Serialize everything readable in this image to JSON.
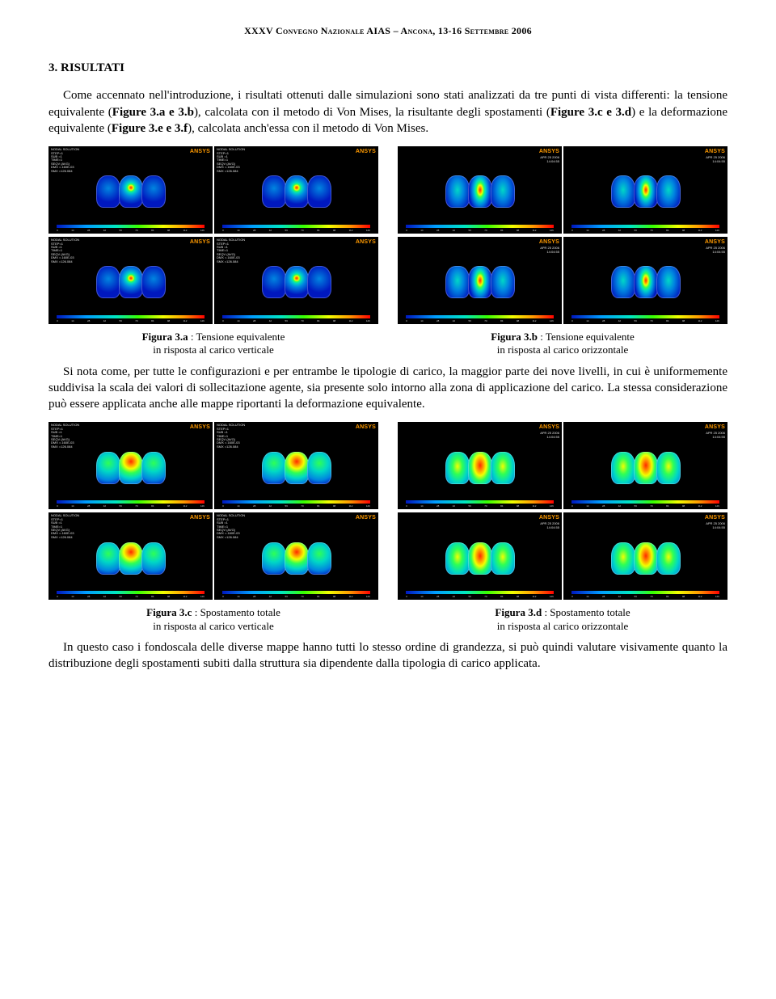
{
  "header": "XXXV Convegno Nazionale AIAS – Ancona, 13-16 Settembre 2006",
  "section": "3. RISULTATI",
  "para1_pre": "Come accennato nell'introduzione, i risultati ottenuti dalle simulazioni sono stati analizzati da tre punti di vista differenti: la tensione equivalente (",
  "fig_ref_1": "Figure 3.a e 3.b",
  "para1_mid1": "), calcolata con il metodo di Von Mises, la risultante degli spostamenti (",
  "fig_ref_2": "Figure 3.c e 3.d",
  "para1_mid2": ") e la deformazione equivalente (",
  "fig_ref_3": "Figure 3.e e 3.f",
  "para1_end": "), calcolata anch'essa con il metodo di Von Mises.",
  "para2": "Si nota come, per tutte le configurazioni e per entrambe le tipologie di carico, la maggior parte dei nove livelli, in cui è uniformemente suddivisa la scala dei valori di sollecitazione agente, sia presente solo intorno alla zona di applicazione del carico. La stessa considerazione può essere applicata anche alle mappe riportanti la deformazione equivalente.",
  "para3": "In questo caso i fondoscala delle diverse mappe hanno tutti lo stesso ordine di grandezza, si può quindi valutare visivamente quanto la distribuzione degli spostamenti subiti dalla struttura sia dipendente dalla tipologia di carico applicata.",
  "figs": {
    "a": {
      "title": "Figura 3.a",
      "desc": " : Tensione equivalente",
      "sub": "in risposta al carico verticale"
    },
    "b": {
      "title": "Figura 3.b",
      "desc": " : Tensione equivalente",
      "sub": "in risposta al carico orizzontale"
    },
    "c": {
      "title": "Figura 3.c",
      "desc": " : Spostamento totale",
      "sub": "in risposta al carico verticale"
    },
    "d": {
      "title": "Figura 3.d",
      "desc": " : Spostamento totale",
      "sub": "in risposta al carico orizzontale"
    }
  },
  "ansys": {
    "logo": "ANSYS",
    "meta_lines": "NODAL SOLUTION\nSTEP=1\nSUB =1\nTIME=1\nSEQV (AVG)\nDMX =.160E-03\nSMX =126.084",
    "date": "APR 25 2006\n14:04:55",
    "ticks": [
      "0",
      "14",
      "28",
      "42",
      "56",
      "70",
      "84",
      "98",
      "112",
      "126"
    ]
  },
  "style": {
    "blue_base": "#0018bf",
    "blue_mid": "#0085e0",
    "cyan": "#00d8c5",
    "cyan_light": "#2de7e7",
    "green": "#2eff55",
    "yellow": "#f2ff00",
    "orange": "#ff9a00",
    "red": "#ff2a00",
    "stress_center_a": "radial-gradient(circle at 50% 38%, #ff2a00 0%, #ff9a00 6%, #f2ff00 10%, #2eff55 15%, #00d8c5 22%, #0085e0 38%, #0018bf 70%)",
    "stress_side_a": "radial-gradient(circle at 50% 40%, #0085e0 0%, #0018bf 60%)",
    "stress_center_b": "radial-gradient(ellipse 55% 80% at 50% 45%, #ff2a00 0%, #ff9a00 10%, #f2ff00 18%, #2eff55 28%, #00d8c5 40%, #0085e0 58%, #0018bf 85%)",
    "stress_side_b": "radial-gradient(ellipse 70% 90% at 50% 45%, #00d8c5 0%, #0085e0 35%, #0018bf 80%)",
    "disp_center_c": "radial-gradient(circle at 50% 30%, #ff2a00 0%, #ff9a00 15%, #f2ff00 28%, #2eff55 45%, #00d8c5 65%, #0085e0 85%)",
    "disp_side_c": "radial-gradient(circle at 50% 35%, #2eff55 0%, #00d8c5 35%, #0085e0 70%, #0018bf 95%)",
    "disp_center_d": "radial-gradient(ellipse 75% 95% at 50% 42%, #ff2a00 0%, #ff9a00 18%, #f2ff00 33%, #2eff55 50%, #00d8c5 68%, #0085e0 88%)",
    "disp_side_d": "radial-gradient(ellipse 80% 100% at 50% 45%, #f2ff00 0%, #2eff55 25%, #00d8c5 50%, #0085e0 80%, #0018bf 100%)"
  }
}
